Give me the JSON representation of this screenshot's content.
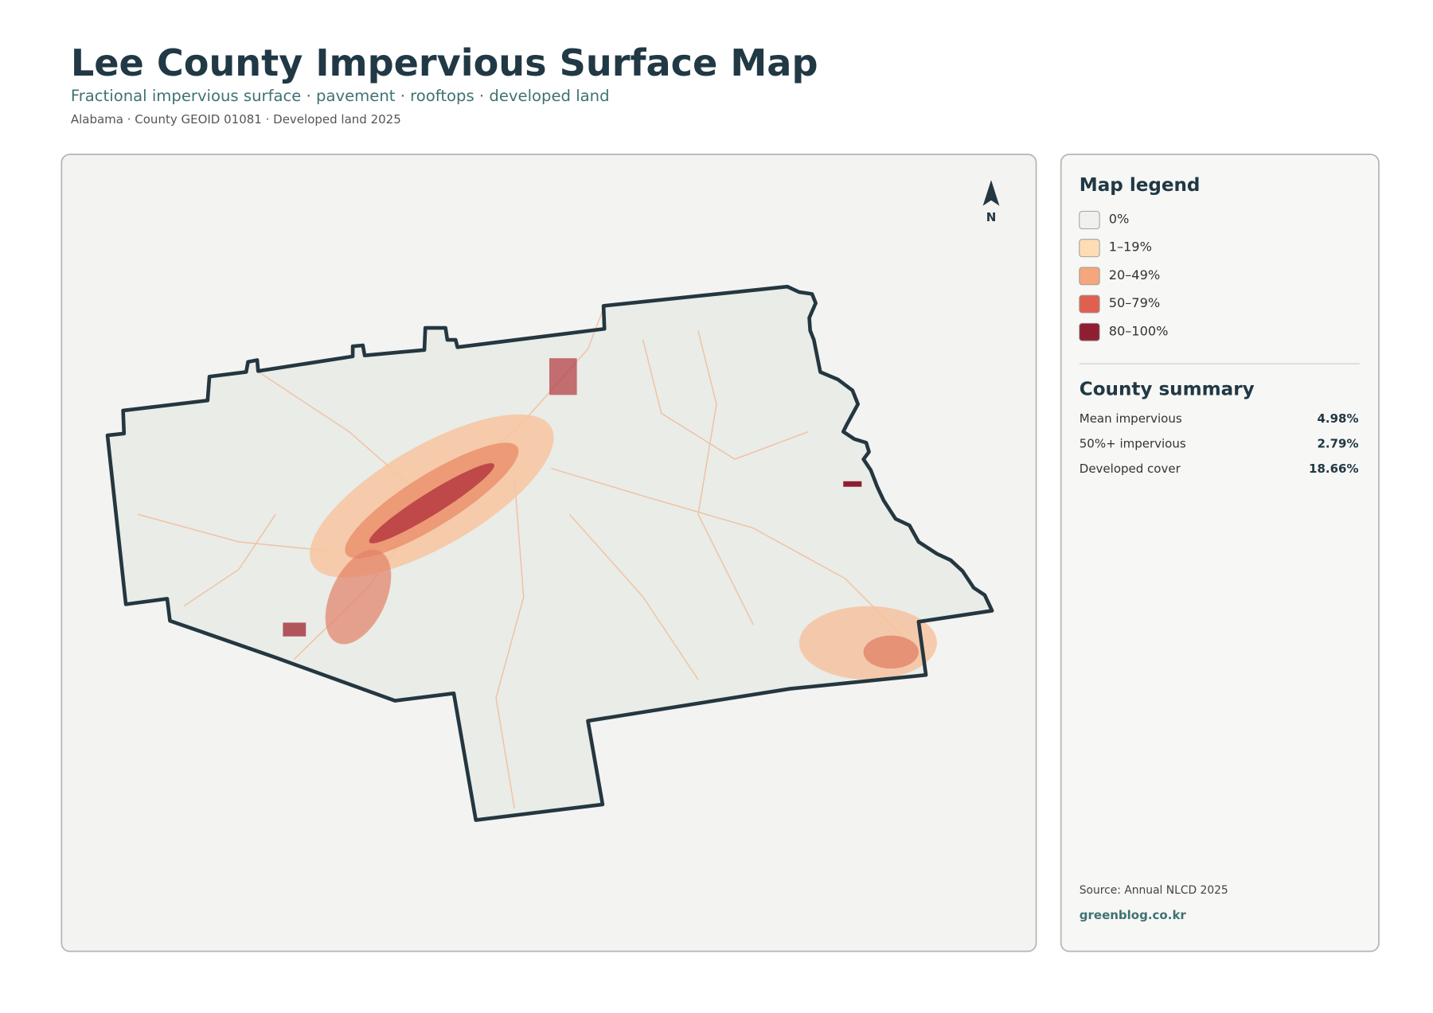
{
  "header": {
    "title": "Lee County Impervious Surface Map",
    "subtitle": "Fractional impervious surface · pavement · rooftops · developed land",
    "meta": "Alabama · County GEOID 01081 · Developed land 2025"
  },
  "map": {
    "north_label": "N"
  },
  "legend": {
    "title": "Map legend",
    "items": [
      {
        "label": "0%",
        "color": "#f0f0ec"
      },
      {
        "label": "1–19%",
        "color": "#fddcb6"
      },
      {
        "label": "20–49%",
        "color": "#f4a67c"
      },
      {
        "label": "50–79%",
        "color": "#e0604f"
      },
      {
        "label": "80–100%",
        "color": "#8e1f33"
      }
    ]
  },
  "summary": {
    "title": "County summary",
    "rows": [
      {
        "label": "Mean impervious",
        "value": "4.98%"
      },
      {
        "label": "50%+ impervious",
        "value": "2.79%"
      },
      {
        "label": "Developed cover",
        "value": "18.66%"
      }
    ]
  },
  "footer": {
    "source": "Source: Annual NLCD 2025",
    "site": "greenblog.co.kr"
  }
}
